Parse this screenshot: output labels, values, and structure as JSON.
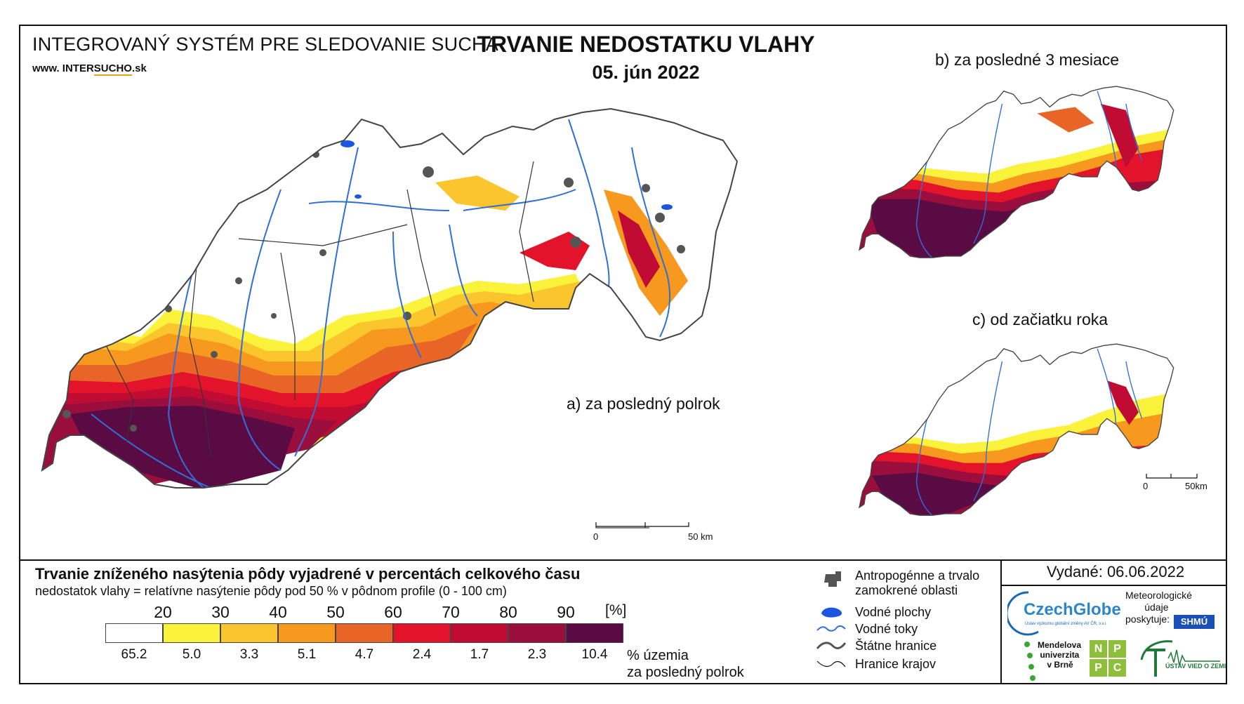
{
  "header": {
    "system_name": "INTEGROVANÝ SYSTÉM PRE SLEDOVANIE SUCHA",
    "website_prefix": "www. INTER",
    "website_highlight": "SUCHO",
    "website_suffix": ".sk",
    "title": "TRVANIE NEDOSTATKU VLAHY",
    "date": "05. jún 2022"
  },
  "maps": {
    "main_label": "a) za posledný polrok",
    "inset_b_label": "b) za posledné 3 mesiace",
    "inset_c_label": "c) od začiatku roka",
    "scale_main": {
      "zero": "0",
      "end": "50 km"
    },
    "scale_inset": {
      "zero": "0",
      "end": "50km"
    }
  },
  "legend": {
    "title": "Trvanie zníženého nasýtenia pôdy vyjadrené v percentách celkového času",
    "subtitle": "nedostatok vlahy = relatívne nasýtenie pôdy pod 50 % v pôdnom profile (0 - 100 cm)",
    "thresholds": [
      "20",
      "30",
      "40",
      "50",
      "60",
      "70",
      "80",
      "90"
    ],
    "unit": "[%]",
    "classes": [
      {
        "color": "#ffffff",
        "share": "65.2"
      },
      {
        "color": "#fbf23c",
        "share": "5.0"
      },
      {
        "color": "#fbc52e",
        "share": "3.3"
      },
      {
        "color": "#f7981f",
        "share": "5.1"
      },
      {
        "color": "#e86527",
        "share": "4.7"
      },
      {
        "color": "#e2132a",
        "share": "2.4"
      },
      {
        "color": "#c00b32",
        "share": "1.7"
      },
      {
        "color": "#9a0e3d",
        "share": "2.3"
      },
      {
        "color": "#5b0b44",
        "share": "10.4"
      }
    ],
    "share_note_1": "% územia",
    "share_note_2": "za posledný polrok"
  },
  "map_legend": {
    "items": [
      {
        "icon": "urban-area-icon",
        "label_1": "Antropogénne a trvalo",
        "label_2": "zamokrené oblasti"
      },
      {
        "icon": "water-body-icon",
        "label_1": "Vodné plochy"
      },
      {
        "icon": "river-icon",
        "label_1": "Vodné toky"
      },
      {
        "icon": "state-border-icon",
        "label_1": "Štátne hranice"
      },
      {
        "icon": "region-border-icon",
        "label_1": "Hranice krajov"
      }
    ]
  },
  "footer": {
    "issued": "Vydané: 06.06.2022",
    "czechglobe": "CzechGlobe",
    "czechglobe_sub": "Ústav výzkumu globální změny AV ČR, v.v.i.",
    "met_1": "Meteorologické",
    "met_2": "údaje",
    "met_3": "poskytuje:",
    "shmu": "SHMÚ",
    "mendel_1": "Mendelova",
    "mendel_2": "univerzita",
    "mendel_3": "v Brně",
    "nppc": [
      "N",
      "P",
      "P",
      "C"
    ],
    "uvz": "ÚSTAV VIED O ZEMI"
  },
  "colors": {
    "river": "#2f6fd6",
    "water": "#1a56e0",
    "urban": "#555555",
    "border": "#333333",
    "nppc_green": "#8fbf3a"
  }
}
